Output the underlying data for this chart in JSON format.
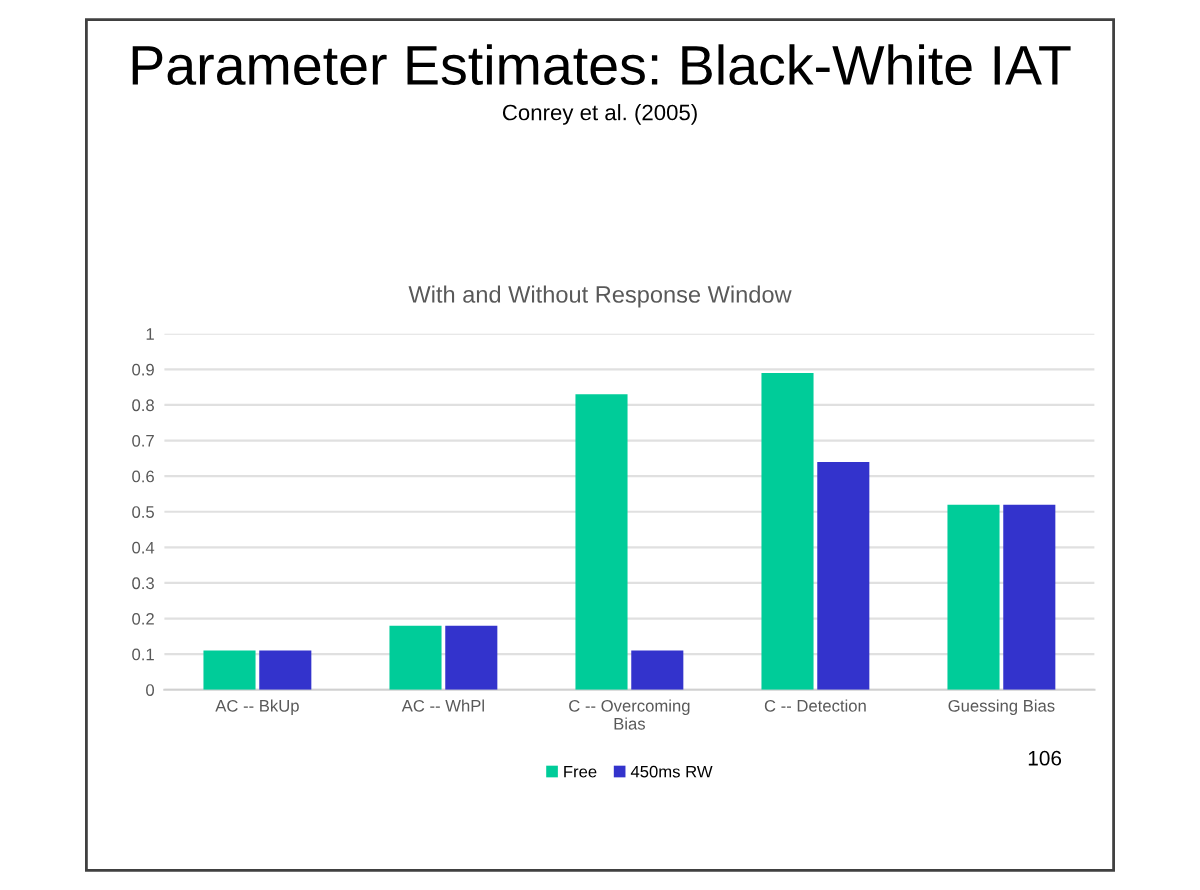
{
  "chart_data": {
    "type": "bar",
    "title": "Parameter Estimates: Black-White IAT",
    "subtitle": "Conrey et al. (2005)",
    "annotations": [
      "With and Without Response Window",
      "106"
    ],
    "categories": [
      "AC -- BkUp",
      "AC -- WhPl",
      "C -- Overcoming\nBias",
      "C -- Detection",
      "Guessing Bias"
    ],
    "series": [
      {
        "name": "Free",
        "color": "#00cc99",
        "values": [
          0.11,
          0.18,
          0.83,
          0.89,
          0.52
        ]
      },
      {
        "name": "450ms RW",
        "color": "#3333cc",
        "values": [
          0.11,
          0.18,
          0.11,
          0.64,
          0.52
        ]
      }
    ],
    "ylim": [
      0,
      1
    ],
    "yticks": [
      0,
      0.1,
      0.2,
      0.3,
      0.4,
      0.5,
      0.6,
      0.7,
      0.8,
      0.9,
      1
    ],
    "grid": "y",
    "legend": "bottom"
  }
}
